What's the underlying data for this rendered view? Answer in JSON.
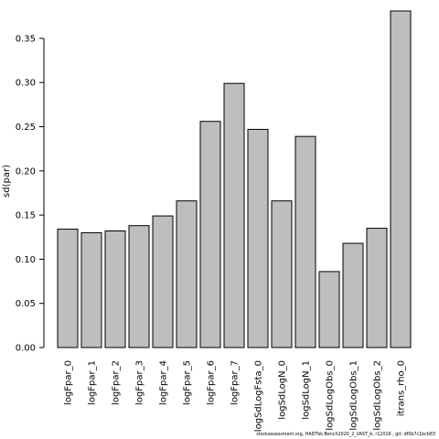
{
  "chart_data": {
    "type": "bar",
    "categories": [
      "logFpar_0",
      "logFpar_1",
      "logFpar_2",
      "logFpar_3",
      "logFpar_4",
      "logFpar_5",
      "logFpar_6",
      "logFpar_7",
      "logSdLogFsta_0",
      "logSdLogN_0",
      "logSdLogN_1",
      "logSdLogObs_0",
      "logSdLogObs_1",
      "logSdLogObs_2",
      "itrans_rho_0"
    ],
    "values": [
      0.134,
      0.13,
      0.132,
      0.138,
      0.149,
      0.166,
      0.256,
      0.299,
      0.247,
      0.166,
      0.239,
      0.086,
      0.118,
      0.135,
      0.381
    ],
    "ylabel": "sd(par)",
    "ylim": [
      0,
      0.381
    ],
    "yticks": [
      "0.00",
      "0.05",
      "0.10",
      "0.15",
      "0.20",
      "0.25",
      "0.30",
      "0.35"
    ],
    "grid": false,
    "bar_color": "#bebebe"
  },
  "footer": "stockassessment.org, HADTbk-Bench2020_2_VAST_b, r12016 , git: df0b7c1bcb83"
}
